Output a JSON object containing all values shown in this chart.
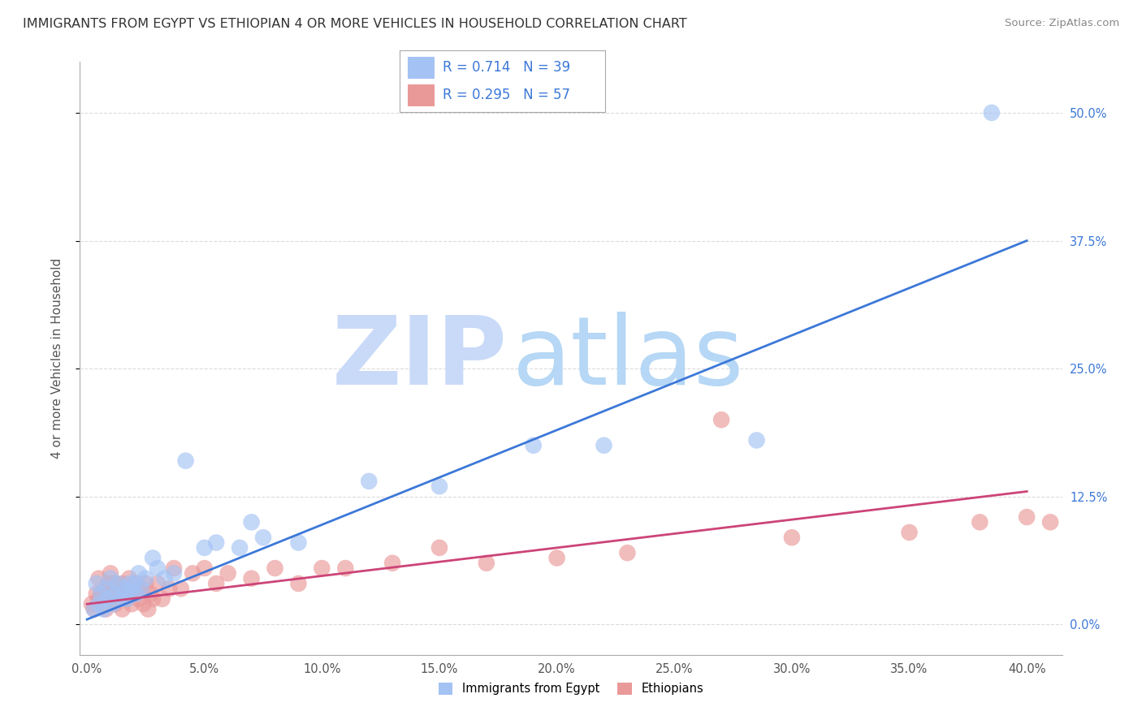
{
  "title": "IMMIGRANTS FROM EGYPT VS ETHIOPIAN 4 OR MORE VEHICLES IN HOUSEHOLD CORRELATION CHART",
  "source": "Source: ZipAtlas.com",
  "ylabel": "4 or more Vehicles in Household",
  "legend_egypt": "Immigrants from Egypt",
  "legend_ethiopians": "Ethiopians",
  "R_egypt": "0.714",
  "N_egypt": "39",
  "R_ethiopians": "0.295",
  "N_ethiopians": "57",
  "color_egypt": "#a4c2f4",
  "color_ethiopians": "#ea9999",
  "color_egypt_line": "#3c78d8",
  "color_ethiopians_line": "#cc4478",
  "watermark_zip": "ZIP",
  "watermark_atlas": "atlas",
  "watermark_color_zip": "#c9daf8",
  "watermark_color_atlas": "#b6d7f5",
  "background_color": "#ffffff",
  "grid_color": "#cccccc",
  "xtick_vals": [
    0,
    5,
    10,
    15,
    20,
    25,
    30,
    35,
    40
  ],
  "ytick_vals": [
    0,
    12.5,
    25.0,
    37.5,
    50.0
  ],
  "xlim": [
    -0.3,
    41.5
  ],
  "ylim": [
    -3.0,
    55.0
  ],
  "egypt_line_x0": 0.0,
  "egypt_line_y0": 0.5,
  "egypt_line_x1": 40.0,
  "egypt_line_y1": 37.5,
  "eth_line_x0": 0.0,
  "eth_line_y0": 2.0,
  "eth_line_x1": 40.0,
  "eth_line_y1": 13.0,
  "egypt_x": [
    0.3,
    0.4,
    0.5,
    0.6,
    0.7,
    0.8,
    0.9,
    1.0,
    1.1,
    1.2,
    1.3,
    1.4,
    1.5,
    1.6,
    1.7,
    1.8,
    1.9,
    2.0,
    2.1,
    2.2,
    2.3,
    2.5,
    2.8,
    3.0,
    3.3,
    3.7,
    4.2,
    5.0,
    5.5,
    6.5,
    7.0,
    7.5,
    9.0,
    12.0,
    15.0,
    19.0,
    22.0,
    28.5,
    38.5
  ],
  "egypt_y": [
    1.5,
    4.0,
    2.0,
    3.0,
    1.5,
    3.5,
    2.5,
    4.5,
    2.0,
    3.0,
    4.0,
    2.5,
    3.5,
    3.0,
    2.5,
    4.0,
    3.5,
    4.0,
    3.0,
    5.0,
    3.5,
    4.5,
    6.5,
    5.5,
    4.5,
    5.0,
    16.0,
    7.5,
    8.0,
    7.5,
    10.0,
    8.5,
    8.0,
    14.0,
    13.5,
    17.5,
    17.5,
    18.0,
    50.0
  ],
  "eth_x": [
    0.2,
    0.3,
    0.4,
    0.5,
    0.5,
    0.6,
    0.7,
    0.8,
    0.8,
    0.9,
    1.0,
    1.0,
    1.1,
    1.2,
    1.2,
    1.3,
    1.4,
    1.5,
    1.5,
    1.6,
    1.7,
    1.8,
    1.9,
    2.0,
    2.1,
    2.2,
    2.3,
    2.4,
    2.5,
    2.6,
    2.7,
    2.8,
    3.0,
    3.2,
    3.5,
    3.7,
    4.0,
    4.5,
    5.0,
    5.5,
    6.0,
    7.0,
    8.0,
    9.0,
    10.0,
    11.0,
    13.0,
    15.0,
    17.0,
    20.0,
    23.0,
    27.0,
    30.0,
    35.0,
    38.0,
    40.0,
    41.0
  ],
  "eth_y": [
    2.0,
    1.5,
    3.0,
    2.5,
    4.5,
    3.0,
    2.0,
    3.5,
    1.5,
    4.0,
    2.5,
    5.0,
    3.0,
    2.0,
    4.0,
    3.5,
    2.5,
    4.0,
    1.5,
    3.5,
    2.5,
    4.5,
    2.0,
    3.0,
    4.0,
    2.5,
    3.5,
    2.0,
    4.0,
    1.5,
    3.0,
    2.5,
    4.0,
    2.5,
    3.5,
    5.5,
    3.5,
    5.0,
    5.5,
    4.0,
    5.0,
    4.5,
    5.5,
    4.0,
    5.5,
    5.5,
    6.0,
    7.5,
    6.0,
    6.5,
    7.0,
    20.0,
    8.5,
    9.0,
    10.0,
    10.5,
    10.0
  ]
}
